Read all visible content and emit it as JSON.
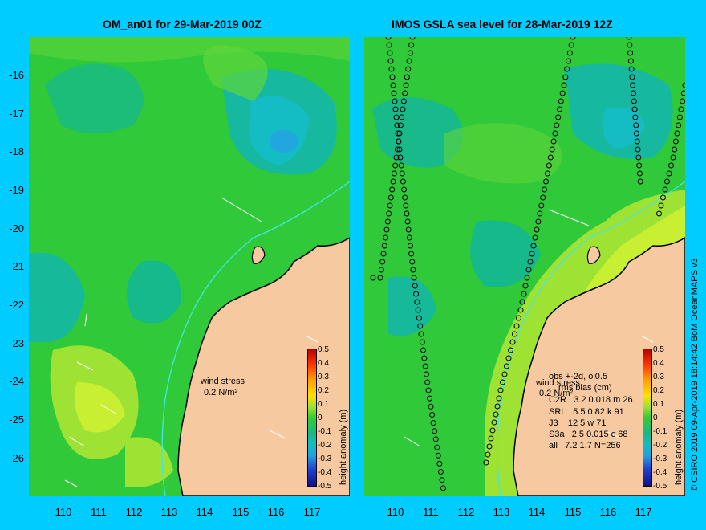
{
  "panels": [
    {
      "title": "OM_an01 for 29-Mar-2019 00Z",
      "wind_label": "wind stress",
      "wind_unit": "0.2 N/m²"
    },
    {
      "title": "IMOS GSLA sea level  for 28-Mar-2019 12Z",
      "wind_label": "wind stress",
      "wind_unit": "0.2 N/m²",
      "stats": {
        "header": "obs +-2d, oi0.5",
        "subheader": "rms bias (cm)",
        "rows": [
          "C2R   3.2 0.018 m 26",
          "SRL   5.5 0.82 k 91",
          "J3    12 5 w 71",
          "S3a   2.5 0.015 c 68",
          "all   7.2 1.7 N=256"
        ]
      }
    }
  ],
  "y_ticks": [
    "-16",
    "-17",
    "-18",
    "-19",
    "-20",
    "-21",
    "-22",
    "-23",
    "-24",
    "-25",
    "-26"
  ],
  "x_ticks": [
    "110",
    "111",
    "112",
    "113",
    "114",
    "115",
    "116",
    "117"
  ],
  "colorbar": {
    "title": "height anomaly (m)",
    "labels": [
      "0.5",
      "0.4",
      "0.3",
      "0.2",
      "0.1",
      "0",
      "-0.1",
      "-0.2",
      "-0.3",
      "-0.4",
      "-0.5"
    ]
  },
  "credit": "© CSIRO 2019   09-Apr-2019 18:14:42 BoM OceanMAPS v3",
  "colors": {
    "background": "#00ccff",
    "land": "#f7c9a0",
    "field_base": "#33cc33",
    "field_high": "#c8f032",
    "field_low": "#00bfa6",
    "field_min": "#22a0e0"
  }
}
